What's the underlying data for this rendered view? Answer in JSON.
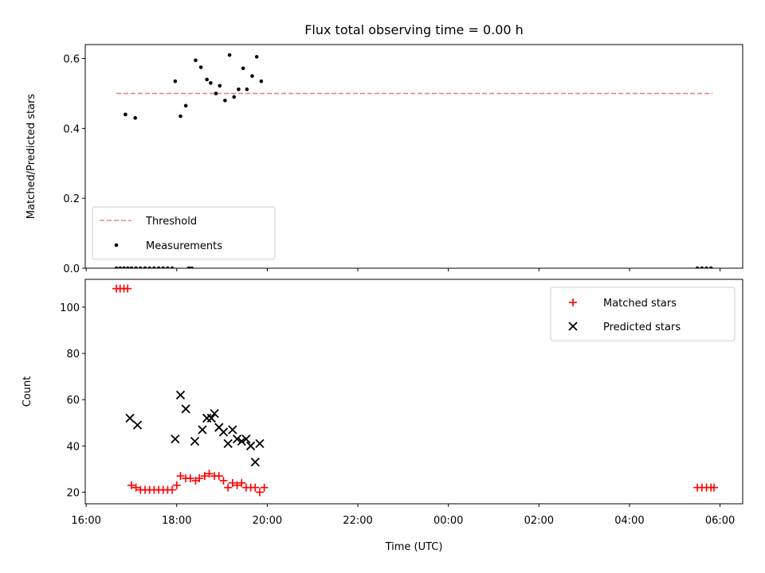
{
  "chart_data": [
    {
      "type": "scatter",
      "title": "Flux total observing time = 0.00 h",
      "ylabel": "Matched/Predicted stars",
      "ylim": [
        0,
        0.64
      ],
      "yticks": [
        "0.0",
        "0.2",
        "0.4",
        "0.6"
      ],
      "legend": {
        "placement": "lower-left",
        "entries": [
          "Threshold",
          "Measurements"
        ]
      },
      "threshold": {
        "name": "Threshold",
        "value": 0.5,
        "x_start": "16:40",
        "x_end": "05:50",
        "color": "#f08080",
        "style": "dashed"
      },
      "series": [
        {
          "name": "Measurements",
          "color": "#000000",
          "marker": "dot",
          "points": [
            [
              "16:52",
              0.44
            ],
            [
              "17:05",
              0.43
            ],
            [
              "17:58",
              0.535
            ],
            [
              "18:05",
              0.435
            ],
            [
              "18:12",
              0.465
            ],
            [
              "18:25",
              0.595
            ],
            [
              "18:32",
              0.575
            ],
            [
              "18:40",
              0.54
            ],
            [
              "18:45",
              0.53
            ],
            [
              "18:52",
              0.5
            ],
            [
              "18:57",
              0.522
            ],
            [
              "19:04",
              0.48
            ],
            [
              "19:10",
              0.61
            ],
            [
              "19:16",
              0.49
            ],
            [
              "19:22",
              0.512
            ],
            [
              "19:28",
              0.572
            ],
            [
              "19:33",
              0.512
            ],
            [
              "19:40",
              0.55
            ],
            [
              "19:46",
              0.605
            ],
            [
              "19:52",
              0.535
            ],
            [
              "16:40",
              0.0
            ],
            [
              "16:45",
              0.0
            ],
            [
              "16:50",
              0.0
            ],
            [
              "16:55",
              0.0
            ],
            [
              "17:00",
              0.0
            ],
            [
              "17:06",
              0.0
            ],
            [
              "17:12",
              0.0
            ],
            [
              "17:18",
              0.0
            ],
            [
              "17:24",
              0.0
            ],
            [
              "17:30",
              0.0
            ],
            [
              "17:36",
              0.0
            ],
            [
              "17:42",
              0.0
            ],
            [
              "17:48",
              0.0
            ],
            [
              "17:54",
              0.0
            ],
            [
              "18:16",
              0.0
            ],
            [
              "18:20",
              0.0
            ],
            [
              "05:30",
              0.0
            ],
            [
              "05:36",
              0.0
            ],
            [
              "05:42",
              0.0
            ],
            [
              "05:48",
              0.0
            ]
          ]
        }
      ]
    },
    {
      "type": "scatter",
      "xlabel": "Time (UTC)",
      "ylabel": "Count",
      "ylim": [
        15,
        112
      ],
      "yticks": [
        "20",
        "40",
        "60",
        "80",
        "100"
      ],
      "xticks": [
        "16:00",
        "18:00",
        "20:00",
        "22:00",
        "00:00",
        "02:00",
        "04:00",
        "06:00"
      ],
      "legend": {
        "placement": "upper-right",
        "entries": [
          "Matched stars",
          "Predicted stars"
        ]
      },
      "series": [
        {
          "name": "Matched stars",
          "color": "#ff0000",
          "marker": "plus",
          "points": [
            [
              "16:40",
              108
            ],
            [
              "16:45",
              108
            ],
            [
              "16:50",
              108
            ],
            [
              "16:55",
              108
            ],
            [
              "17:00",
              23
            ],
            [
              "17:06",
              22
            ],
            [
              "17:12",
              21
            ],
            [
              "17:18",
              21
            ],
            [
              "17:24",
              21
            ],
            [
              "17:30",
              21
            ],
            [
              "17:36",
              21
            ],
            [
              "17:42",
              21
            ],
            [
              "17:48",
              21
            ],
            [
              "17:54",
              21
            ],
            [
              "18:00",
              23
            ],
            [
              "18:05",
              27
            ],
            [
              "18:12",
              26
            ],
            [
              "18:18",
              26
            ],
            [
              "18:25",
              25
            ],
            [
              "18:30",
              26
            ],
            [
              "18:37",
              27
            ],
            [
              "18:43",
              28
            ],
            [
              "18:50",
              27
            ],
            [
              "18:56",
              27
            ],
            [
              "19:02",
              25
            ],
            [
              "19:08",
              22
            ],
            [
              "19:14",
              24
            ],
            [
              "19:20",
              23
            ],
            [
              "19:26",
              24
            ],
            [
              "19:32",
              22
            ],
            [
              "19:38",
              22
            ],
            [
              "19:44",
              22
            ],
            [
              "19:50",
              20
            ],
            [
              "19:56",
              22
            ],
            [
              "05:30",
              22
            ],
            [
              "05:36",
              22
            ],
            [
              "05:42",
              22
            ],
            [
              "05:48",
              22
            ],
            [
              "05:52",
              22
            ]
          ]
        },
        {
          "name": "Predicted stars",
          "color": "#000000",
          "marker": "x",
          "points": [
            [
              "16:58",
              52
            ],
            [
              "17:08",
              49
            ],
            [
              "17:58",
              43
            ],
            [
              "18:05",
              62
            ],
            [
              "18:12",
              56
            ],
            [
              "18:24",
              42
            ],
            [
              "18:34",
              47
            ],
            [
              "18:40",
              52
            ],
            [
              "18:46",
              52
            ],
            [
              "18:50",
              54
            ],
            [
              "18:56",
              48
            ],
            [
              "19:02",
              46
            ],
            [
              "19:08",
              41
            ],
            [
              "19:14",
              47
            ],
            [
              "19:20",
              43
            ],
            [
              "19:26",
              42
            ],
            [
              "19:32",
              43
            ],
            [
              "19:38",
              40
            ],
            [
              "19:44",
              33
            ],
            [
              "19:50",
              41
            ]
          ]
        }
      ]
    }
  ]
}
